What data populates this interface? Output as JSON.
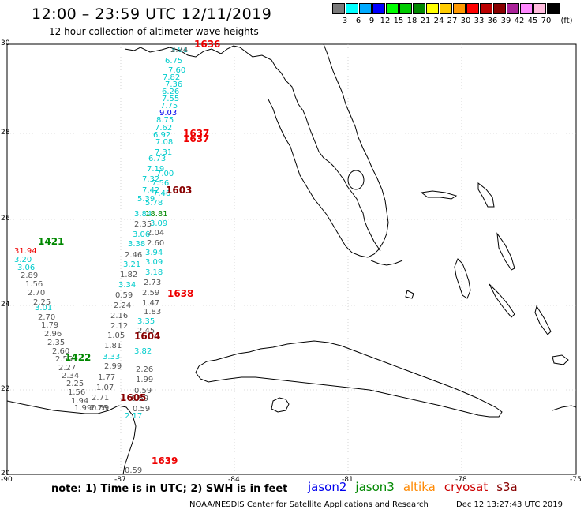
{
  "header": {
    "title": "12:00 – 23:59 UTC 12/11/2019",
    "subtitle": "12 hour collection of altimeter wave heights"
  },
  "colorbar": {
    "unit": "(ft)",
    "bins": [
      {
        "color": "#7a7a7a",
        "label": "3"
      },
      {
        "color": "#00ffff",
        "label": "6"
      },
      {
        "color": "#00aaff",
        "label": "9"
      },
      {
        "color": "#0000ff",
        "label": "12"
      },
      {
        "color": "#00ff00",
        "label": "15"
      },
      {
        "color": "#00cc00",
        "label": "18"
      },
      {
        "color": "#008800",
        "label": "21"
      },
      {
        "color": "#ffff00",
        "label": "24"
      },
      {
        "color": "#ffcc00",
        "label": "27"
      },
      {
        "color": "#ff9900",
        "label": "30"
      },
      {
        "color": "#ff0000",
        "label": "33"
      },
      {
        "color": "#bb0000",
        "label": "36"
      },
      {
        "color": "#880000",
        "label": "39"
      },
      {
        "color": "#aa2299",
        "label": "42"
      },
      {
        "color": "#ff88ff",
        "label": "45"
      },
      {
        "color": "#ffbbdd",
        "label": "70"
      },
      {
        "color": "#000000",
        "label": ""
      }
    ]
  },
  "axes": {
    "lat_labels": [
      "30",
      "28",
      "26",
      "24",
      "22",
      "20"
    ],
    "lon_labels": [
      "-90",
      "-87",
      "-84",
      "-81",
      "-78",
      "-75"
    ]
  },
  "tracks": {
    "times": [
      {
        "text": "1636",
        "color": "#ee0000"
      },
      {
        "text": "1637",
        "color": "#ee0000"
      },
      {
        "text": "1637",
        "color": "#ee0000"
      },
      {
        "text": "1603",
        "color": "#880000"
      },
      {
        "text": "1421",
        "color": "#008800"
      },
      {
        "text": "1638",
        "color": "#ee0000"
      },
      {
        "text": "1604",
        "color": "#880000"
      },
      {
        "text": "1422",
        "color": "#008800"
      },
      {
        "text": "1605",
        "color": "#880000"
      },
      {
        "text": "1639",
        "color": "#ee0000"
      }
    ],
    "waves": [
      {
        "text": "3.91",
        "color": "#00cccc"
      },
      {
        "text": "6.75",
        "color": "#00cccc"
      },
      {
        "text": "7.60",
        "color": "#00cccc"
      },
      {
        "text": "7.82",
        "color": "#00cccc"
      },
      {
        "text": "7.36",
        "color": "#00cccc"
      },
      {
        "text": "6.26",
        "color": "#00cccc"
      },
      {
        "text": "7.55",
        "color": "#00cccc"
      },
      {
        "text": "7.75",
        "color": "#00cccc"
      },
      {
        "text": "9.03",
        "color": "#0000ee"
      },
      {
        "text": "8.75",
        "color": "#00cccc"
      },
      {
        "text": "7.62",
        "color": "#00cccc"
      },
      {
        "text": "6.92",
        "color": "#00cccc"
      },
      {
        "text": "7.08",
        "color": "#00cccc"
      },
      {
        "text": "7.31",
        "color": "#00cccc"
      },
      {
        "text": "6.73",
        "color": "#00cccc"
      },
      {
        "text": "7.19",
        "color": "#00cccc"
      },
      {
        "text": "7.00",
        "color": "#00cccc"
      },
      {
        "text": "7.32",
        "color": "#00cccc"
      },
      {
        "text": "7.56",
        "color": "#00cccc"
      },
      {
        "text": "7.42",
        "color": "#00cccc"
      },
      {
        "text": "7.46",
        "color": "#00cccc"
      },
      {
        "text": "5.39",
        "color": "#00cccc"
      },
      {
        "text": "5.78",
        "color": "#00cccc"
      },
      {
        "text": "3.84",
        "color": "#00cccc"
      },
      {
        "text": "18.81",
        "color": "#008800"
      },
      {
        "text": "2.35",
        "color": "#555555"
      },
      {
        "text": "3.09",
        "color": "#00cccc"
      },
      {
        "text": "2.04",
        "color": "#555555"
      },
      {
        "text": "3.06",
        "color": "#00cccc"
      },
      {
        "text": "2.60",
        "color": "#555555"
      },
      {
        "text": "3.38",
        "color": "#00cccc"
      },
      {
        "text": "2.46",
        "color": "#555555"
      },
      {
        "text": "3.94",
        "color": "#00cccc"
      },
      {
        "text": "3.09",
        "color": "#00cccc"
      },
      {
        "text": "3.21",
        "color": "#00cccc"
      },
      {
        "text": "1.82",
        "color": "#555555"
      },
      {
        "text": "3.18",
        "color": "#00cccc"
      },
      {
        "text": "2.73",
        "color": "#555555"
      },
      {
        "text": "3.34",
        "color": "#00cccc"
      },
      {
        "text": "0.59",
        "color": "#555555"
      },
      {
        "text": "2.59",
        "color": "#555555"
      },
      {
        "text": "2.24",
        "color": "#555555"
      },
      {
        "text": "1.47",
        "color": "#555555"
      },
      {
        "text": "1.83",
        "color": "#555555"
      },
      {
        "text": "2.16",
        "color": "#555555"
      },
      {
        "text": "3.35",
        "color": "#00cccc"
      },
      {
        "text": "2.12",
        "color": "#555555"
      },
      {
        "text": "2.45",
        "color": "#555555"
      },
      {
        "text": "1.05",
        "color": "#555555"
      },
      {
        "text": "1.81",
        "color": "#555555"
      },
      {
        "text": "3.82",
        "color": "#00cccc"
      },
      {
        "text": "3.33",
        "color": "#00cccc"
      },
      {
        "text": "2.99",
        "color": "#555555"
      },
      {
        "text": "2.26",
        "color": "#555555"
      },
      {
        "text": "1.77",
        "color": "#555555"
      },
      {
        "text": "1.99",
        "color": "#555555"
      },
      {
        "text": "1.07",
        "color": "#555555"
      },
      {
        "text": "0.59",
        "color": "#555555"
      },
      {
        "text": "2.71",
        "color": "#555555"
      },
      {
        "text": "0.59",
        "color": "#555555"
      },
      {
        "text": "2.76",
        "color": "#555555"
      },
      {
        "text": "0.59",
        "color": "#555555"
      },
      {
        "text": "2.17",
        "color": "#00cccc"
      },
      {
        "text": "31.94",
        "color": "#ee0000"
      },
      {
        "text": "3.20",
        "color": "#00cccc"
      },
      {
        "text": "3.06",
        "color": "#00cccc"
      },
      {
        "text": "2.89",
        "color": "#555555"
      },
      {
        "text": "1.56",
        "color": "#555555"
      },
      {
        "text": "2.70",
        "color": "#555555"
      },
      {
        "text": "2.25",
        "color": "#555555"
      },
      {
        "text": "3.01",
        "color": "#00cccc"
      },
      {
        "text": "2.70",
        "color": "#555555"
      },
      {
        "text": "1.79",
        "color": "#555555"
      },
      {
        "text": "2.96",
        "color": "#555555"
      },
      {
        "text": "2.35",
        "color": "#555555"
      },
      {
        "text": "2.60",
        "color": "#555555"
      },
      {
        "text": "2.55",
        "color": "#555555"
      },
      {
        "text": "2.27",
        "color": "#555555"
      },
      {
        "text": "2.34",
        "color": "#555555"
      },
      {
        "text": "2.25",
        "color": "#555555"
      },
      {
        "text": "1.56",
        "color": "#555555"
      },
      {
        "text": "1.94",
        "color": "#555555"
      },
      {
        "text": "1.99",
        "color": "#555555"
      },
      {
        "text": "0.59",
        "color": "#555555"
      },
      {
        "text": "0.59",
        "color": "#555555"
      },
      {
        "text": "2.74",
        "color": "#555555"
      }
    ]
  },
  "footer": {
    "note": "note: 1) Time is in UTC; 2) SWH is in feet",
    "legend": [
      {
        "name": "jason2",
        "color": "#0000ee"
      },
      {
        "name": "jason3",
        "color": "#008800"
      },
      {
        "name": "altika",
        "color": "#ff8800"
      },
      {
        "name": "cryosat",
        "color": "#cc0000"
      },
      {
        "name": "s3a",
        "color": "#880000"
      }
    ],
    "credit": "NOAA/NESDIS Center for Satellite Applications and Research",
    "timestamp": "Dec 12 13:27:43 UTC 2019"
  }
}
